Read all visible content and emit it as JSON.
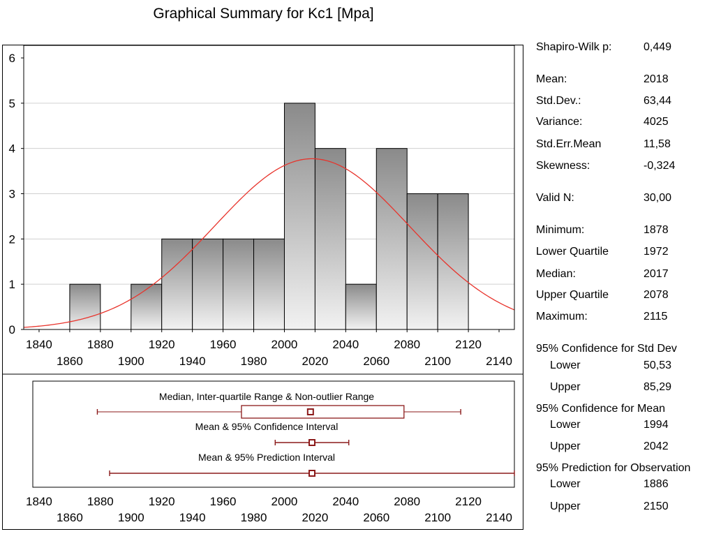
{
  "title": "Graphical Summary for Kc1  [Mpa]",
  "colors": {
    "curve": "#e8332b",
    "box": "#8b1a1a",
    "bar_top": "#8a8a8a",
    "bar_bottom": "#f2f2f2",
    "grid": "#d0d0d0"
  },
  "chart_data": [
    {
      "type": "bar",
      "subtype": "histogram",
      "bins": [
        {
          "from": 1860,
          "to": 1880,
          "count": 1
        },
        {
          "from": 1880,
          "to": 1900,
          "count": 0
        },
        {
          "from": 1900,
          "to": 1920,
          "count": 1
        },
        {
          "from": 1920,
          "to": 1940,
          "count": 2
        },
        {
          "from": 1940,
          "to": 1960,
          "count": 2
        },
        {
          "from": 1960,
          "to": 1980,
          "count": 2
        },
        {
          "from": 1980,
          "to": 2000,
          "count": 2
        },
        {
          "from": 2000,
          "to": 2020,
          "count": 5
        },
        {
          "from": 2020,
          "to": 2040,
          "count": 4
        },
        {
          "from": 2040,
          "to": 2060,
          "count": 1
        },
        {
          "from": 2060,
          "to": 2080,
          "count": 4
        },
        {
          "from": 2080,
          "to": 2100,
          "count": 3
        },
        {
          "from": 2100,
          "to": 2120,
          "count": 3
        }
      ],
      "normal_curve": {
        "mean": 2018,
        "sd": 63.44,
        "n": 30,
        "bin_width": 20
      },
      "xlim": [
        1830,
        2150
      ],
      "ylim": [
        0,
        6
      ],
      "yticks": [
        "0",
        "1",
        "2",
        "3",
        "4",
        "5",
        "6"
      ],
      "xticks_upper": [
        "1840",
        "1880",
        "1920",
        "1960",
        "2000",
        "2040",
        "2080",
        "2120"
      ],
      "xticks_lower": [
        "1860",
        "1900",
        "1940",
        "1980",
        "2020",
        "2060",
        "2100",
        "2140"
      ],
      "grid": true
    },
    {
      "type": "box",
      "xlim": [
        1830,
        2150
      ],
      "xticks_upper": [
        "1840",
        "1880",
        "1920",
        "1960",
        "2000",
        "2040",
        "2080",
        "2120"
      ],
      "xticks_lower": [
        "1860",
        "1900",
        "1940",
        "1980",
        "2020",
        "2060",
        "2100",
        "2140"
      ],
      "rows": [
        {
          "label": "Median, Inter-quartile Range & Non-outlier Range",
          "low": 1878,
          "q1": 1972,
          "center": 2017,
          "q3": 2078,
          "high": 2115
        },
        {
          "label": "Mean & 95% Confidence Interval",
          "low": 1994,
          "center": 2018,
          "high": 2042
        },
        {
          "label": "Mean & 95% Prediction Interval",
          "low": 1886,
          "center": 2018,
          "high": 2150
        }
      ]
    }
  ],
  "stats": {
    "shapiro": {
      "label": "Shapiro-Wilk p:",
      "value": "0,449"
    },
    "mean": {
      "label": "Mean:",
      "value": "2018"
    },
    "stddev": {
      "label": "Std.Dev.:",
      "value": "63,44"
    },
    "variance": {
      "label": "Variance:",
      "value": "4025"
    },
    "sem": {
      "label": "Std.Err.Mean",
      "value": "11,58"
    },
    "skewness": {
      "label": "Skewness:",
      "value": "-0,324"
    },
    "valid_n": {
      "label": "Valid N:",
      "value": "30,00"
    },
    "minimum": {
      "label": "Minimum:",
      "value": "1878"
    },
    "lower_quartile": {
      "label": "Lower Quartile",
      "value": "1972"
    },
    "median": {
      "label": "Median:",
      "value": "2017"
    },
    "upper_quartile": {
      "label": "Upper Quartile",
      "value": "2078"
    },
    "maximum": {
      "label": "Maximum:",
      "value": "2115"
    },
    "ci_sd": {
      "heading": "95% Confidence for Std Dev",
      "lower_label": "Lower",
      "lower": "50,53",
      "upper_label": "Upper",
      "upper": "85,29"
    },
    "ci_mean": {
      "heading": "95% Confidence for Mean",
      "lower_label": "Lower",
      "lower": "1994",
      "upper_label": "Upper",
      "upper": "2042"
    },
    "pi_obs": {
      "heading": "95% Prediction for Observation",
      "lower_label": "Lower",
      "lower": "1886",
      "upper_label": "Upper",
      "upper": "2150"
    }
  }
}
